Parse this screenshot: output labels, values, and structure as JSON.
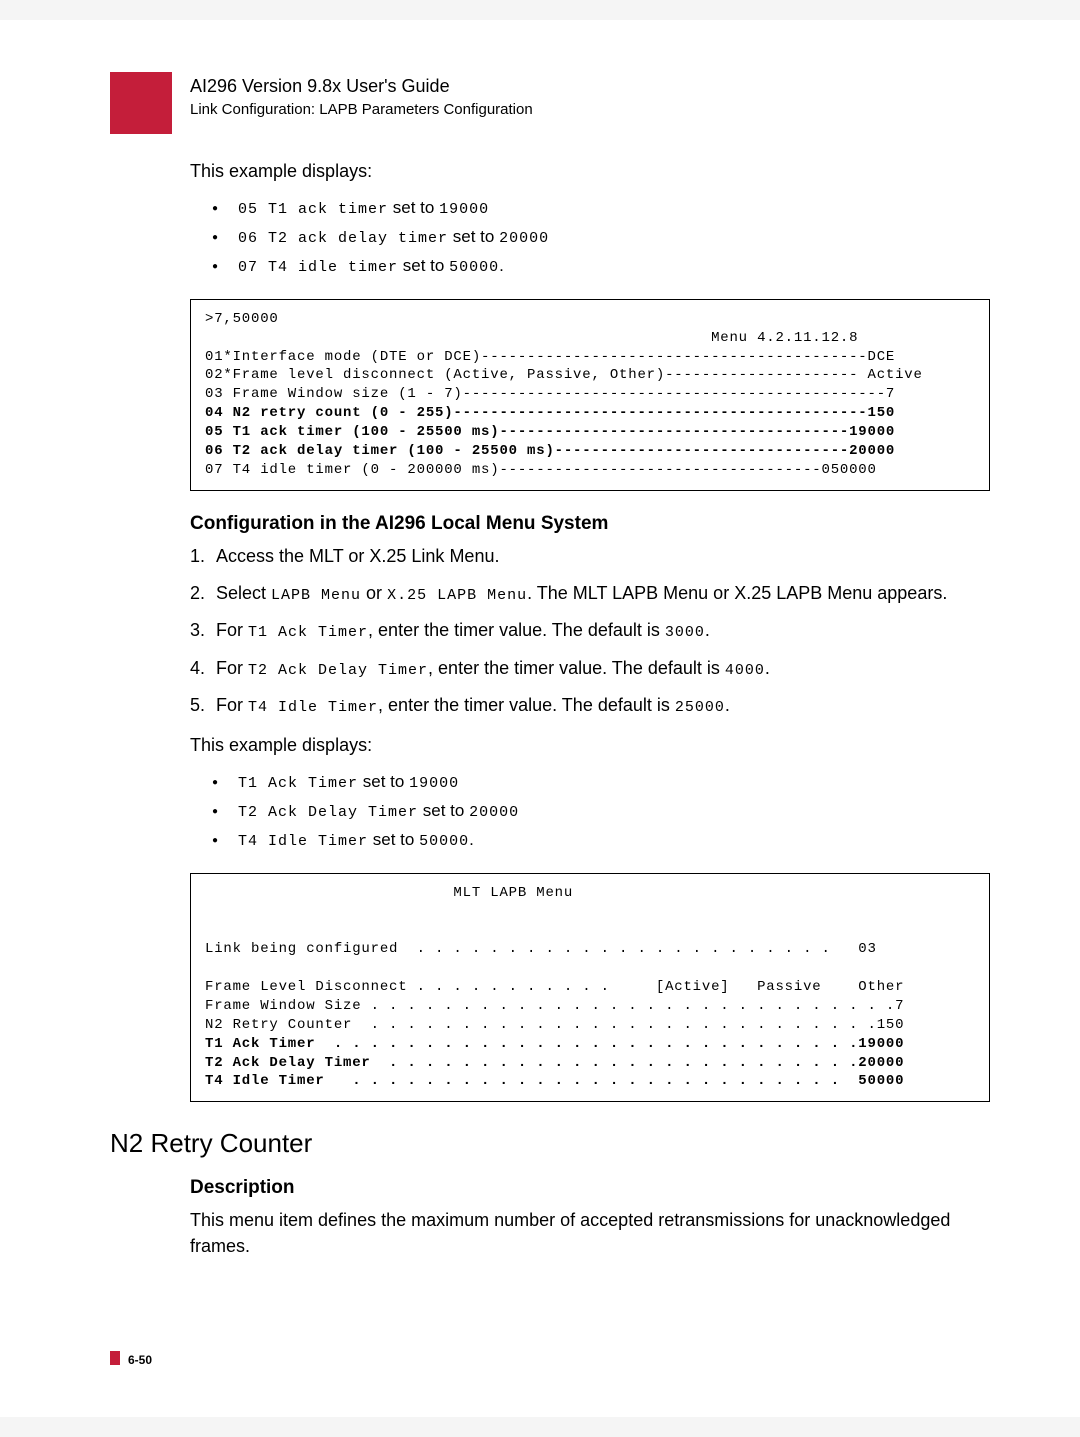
{
  "header": {
    "title": "AI296 Version 9.8x User's Guide",
    "subtitle": "Link Configuration: LAPB Parameters Configuration"
  },
  "intro1": "This example displays:",
  "bullets1": [
    {
      "code": "05 T1 ack timer",
      "mid": " set to ",
      "val": "19000"
    },
    {
      "code": "06 T2 ack delay timer",
      "mid": " set to ",
      "val": "20000"
    },
    {
      "code": "07 T4 idle timer",
      "mid": " set to ",
      "val": "50000",
      "tail": "."
    }
  ],
  "codebox1": ">7,50000\n                                                       Menu 4.2.11.12.8\n01*Interface mode (DTE or DCE)------------------------------------------DCE\n02*Frame level disconnect (Active, Passive, Other)--------------------- Active\n03 Frame Window size (1 - 7)----------------------------------------------7\n04 N2 retry count (0 - 255)---------------------------------------------150\n05 T1 ack timer (100 - 25500 ms)--------------------------------------19000\n06 T2 ack delay timer (100 - 25500 ms)--------------------------------20000\n07 T4 idle timer (0 - 200000 ms)-----------------------------------050000",
  "codebox1_boldlines": [
    5,
    6,
    7
  ],
  "h3a": "Configuration in the AI296 Local Menu System",
  "steps": [
    {
      "t": "Access the MLT or X.25 Link Menu."
    },
    {
      "pre": "Select ",
      "c1": "LAPB Menu",
      "mid": " or ",
      "c2": "X.25 LAPB Menu",
      "post": ". The MLT LAPB Menu or X.25 LAPB Menu appears."
    },
    {
      "pre": "For ",
      "c1": "T1 Ack Timer",
      "post": ", enter the timer value. The default is ",
      "v": "3000",
      "end": "."
    },
    {
      "pre": "For ",
      "c1": "T2 Ack Delay Timer",
      "post": ", enter the timer value. The default is ",
      "v": "4000",
      "end": "."
    },
    {
      "pre": "For ",
      "c1": "T4 Idle Timer",
      "post": ", enter the timer value. The default is ",
      "v": "25000",
      "end": "."
    }
  ],
  "intro2": "This example displays:",
  "bullets2": [
    {
      "code": "T1 Ack Timer",
      "mid": " set to ",
      "val": "19000"
    },
    {
      "code": "T2 Ack Delay Timer",
      "mid": " set to ",
      "val": "20000"
    },
    {
      "code": "T4 Idle Timer",
      "mid": " set to ",
      "val": "50000",
      "tail": "."
    }
  ],
  "codebox2_title": "MLT LAPB Menu",
  "codebox2_lines": [
    {
      "txt": "Link being configured  . . . . . . . . . . . . . . . . . . . . . . .   03",
      "bold": false
    },
    {
      "txt": "",
      "bold": false
    },
    {
      "txt": "Frame Level Disconnect . . . . . . . . . . .     [Active]   Passive    Other",
      "bold": false
    },
    {
      "txt": "Frame Window Size . . . . . . . . . . . . . . . . . . . . . . . . . . . . .7",
      "bold": false
    },
    {
      "txt": "N2 Retry Counter  . . . . . . . . . . . . . . . . . . . . . . . . . . . .150",
      "bold": false
    },
    {
      "txt": "T1 Ack Timer  . . . . . . . . . . . . . . . . . . . . . . . . . . . . .19000",
      "bold": true
    },
    {
      "txt": "T2 Ack Delay Timer  . . . . . . . . . . . . . . . . . . . . . . . . . .20000",
      "bold": true
    },
    {
      "txt": "T4 Idle Timer   . . . . . . . . . . . . . . . . . . . . . . . . . . .  50000",
      "bold": true
    }
  ],
  "h2": "N2 Retry Counter",
  "h3b": "Description",
  "desc": "This menu item defines the maximum number of accepted retransmissions for unacknowledged frames.",
  "pagenum": "6-50",
  "colors": {
    "accent": "#c41e3a"
  }
}
